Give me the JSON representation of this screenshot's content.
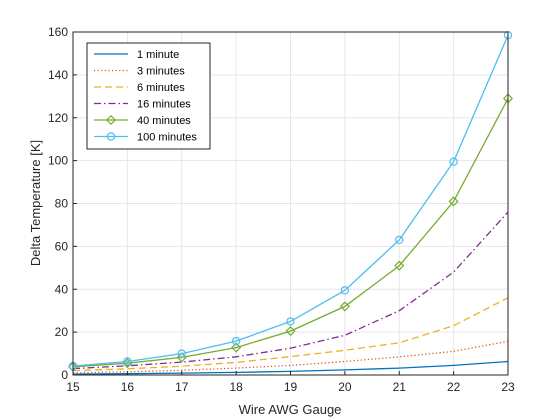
{
  "chart_data": {
    "type": "line",
    "title": "",
    "xlabel": "Wire AWG Gauge",
    "ylabel": "Delta Temperature [K]",
    "xlim": [
      15,
      23
    ],
    "ylim": [
      0,
      160
    ],
    "x_ticks": [
      15,
      16,
      17,
      18,
      19,
      20,
      21,
      22,
      23
    ],
    "y_ticks": [
      0,
      20,
      40,
      60,
      80,
      100,
      120,
      140,
      160
    ],
    "grid": true,
    "legend_position": "top-left",
    "x": [
      15,
      16,
      17,
      18,
      19,
      20,
      21,
      22,
      23
    ],
    "series": [
      {
        "name": "1  minute",
        "color": "#0072BD",
        "dash": "solid",
        "marker": "none",
        "values": [
          0.4,
          0.6,
          0.9,
          1.2,
          1.7,
          2.4,
          3.2,
          4.5,
          6.3
        ]
      },
      {
        "name": "3  minutes",
        "color": "#D95319",
        "dash": "dotted",
        "marker": "none",
        "values": [
          1.0,
          1.5,
          2.2,
          3.2,
          4.5,
          6.3,
          8.5,
          11.0,
          15.7
        ]
      },
      {
        "name": "6  minutes",
        "color": "#EDB120",
        "dash": "dashed",
        "marker": "none",
        "values": [
          2.0,
          2.9,
          4.1,
          5.9,
          8.6,
          11.5,
          15.0,
          23.0,
          36.0
        ]
      },
      {
        "name": "16 minutes",
        "color": "#7E2F8E",
        "dash": "dashdot",
        "marker": "none",
        "values": [
          3.0,
          4.3,
          6.0,
          8.5,
          12.5,
          18.5,
          30.0,
          48.0,
          76.0
        ]
      },
      {
        "name": "40 minutes",
        "color": "#77AC30",
        "dash": "solid",
        "marker": "diamond",
        "values": [
          3.8,
          5.5,
          8.2,
          12.8,
          20.5,
          32.0,
          51.0,
          81.0,
          129.0
        ]
      },
      {
        "name": "100 minutes",
        "color": "#4DBEEE",
        "dash": "solid",
        "marker": "circle",
        "values": [
          4.2,
          6.3,
          10.0,
          15.8,
          25.0,
          39.5,
          63.0,
          99.5,
          158.5
        ]
      }
    ]
  }
}
